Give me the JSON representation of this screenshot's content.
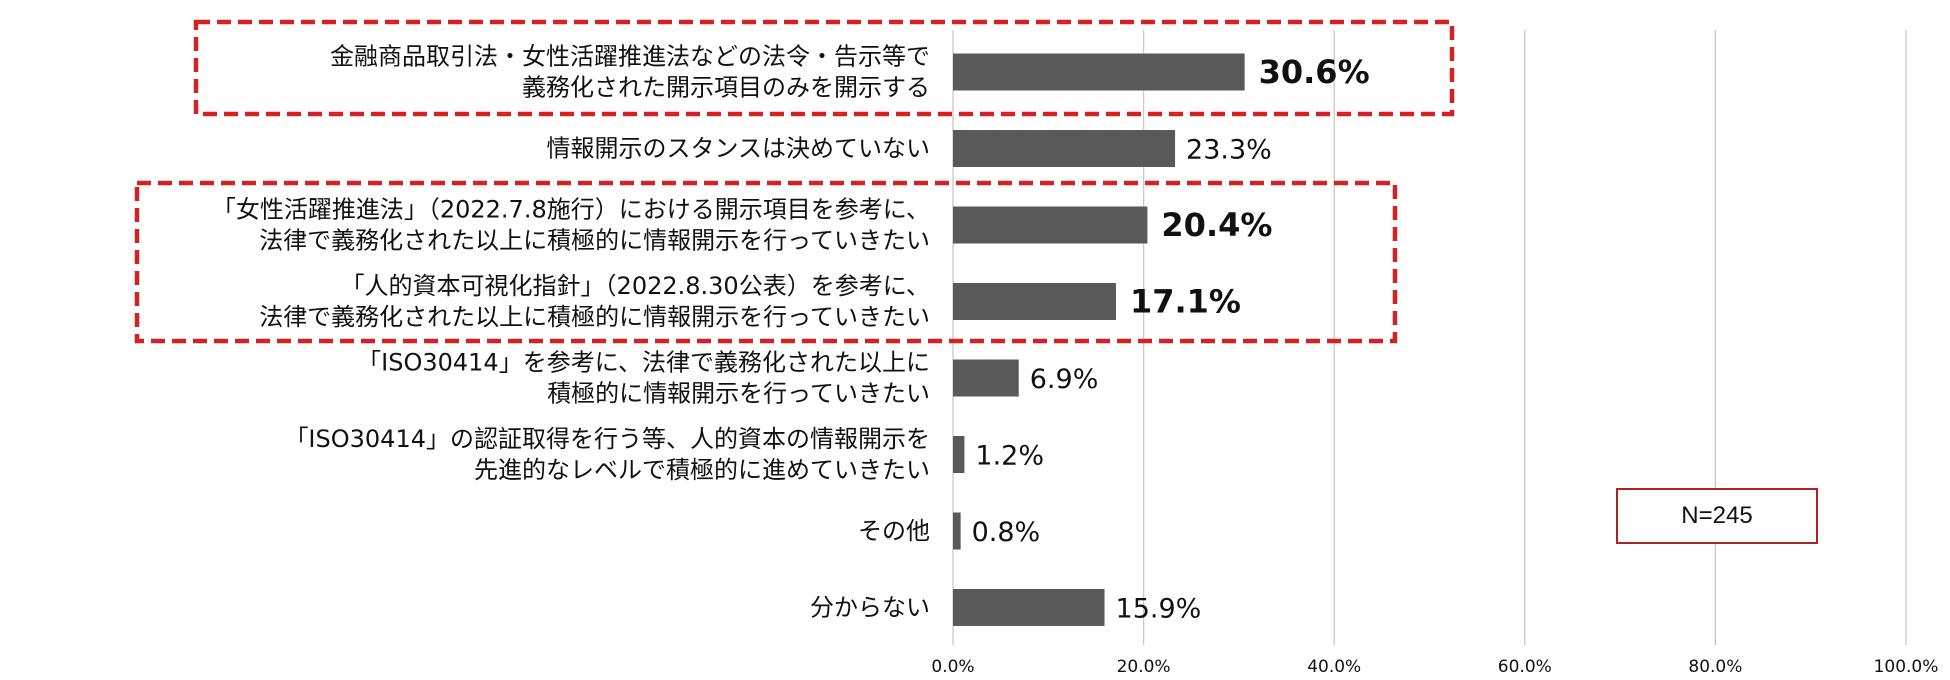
{
  "chart_data": {
    "type": "bar",
    "orientation": "horizontal",
    "categories": [
      [
        "金融商品取引法・女性活躍推進法などの法令・告示等で",
        "義務化された開示項目のみを開示する"
      ],
      [
        "情報開示のスタンスは決めていない"
      ],
      [
        "「女性活躍推進法」（2022.7.8施行）における開示項目を参考に、",
        "法律で義務化された以上に積極的に情報開示を行っていきたい"
      ],
      [
        "「人的資本可視化指針」（2022.8.30公表）を参考に、",
        "法律で義務化された以上に積極的に情報開示を行っていきたい"
      ],
      [
        "「ISO30414」を参考に、法律で義務化された以上に",
        "積極的に情報開示を行っていきたい"
      ],
      [
        "「ISO30414」の認証取得を行う等、人的資本の情報開示を",
        "先進的なレベルで積極的に進めていきたい"
      ],
      [
        "その他"
      ],
      [
        "分からない"
      ]
    ],
    "values": [
      30.6,
      23.3,
      20.4,
      17.1,
      6.9,
      1.2,
      0.8,
      15.9
    ],
    "value_labels": [
      "30.6%",
      "23.3%",
      "20.4%",
      "17.1%",
      "6.9%",
      "1.2%",
      "0.8%",
      "15.9%"
    ],
    "bold_labels": [
      true,
      false,
      true,
      true,
      false,
      false,
      false,
      false
    ],
    "highlighted_groups": [
      [
        0
      ],
      [
        2,
        3
      ]
    ],
    "xlim": [
      0,
      100
    ],
    "xticks": [
      0,
      20,
      40,
      60,
      80,
      100
    ],
    "xtick_labels": [
      "0.0%",
      "20.0%",
      "40.0%",
      "60.0%",
      "80.0%",
      "100.0%"
    ],
    "grid": true,
    "bar_color": "#595959",
    "highlight_color": "#d42222",
    "title": "",
    "xlabel": "",
    "ylabel": ""
  },
  "annotation": {
    "sample_size": "N=245"
  }
}
